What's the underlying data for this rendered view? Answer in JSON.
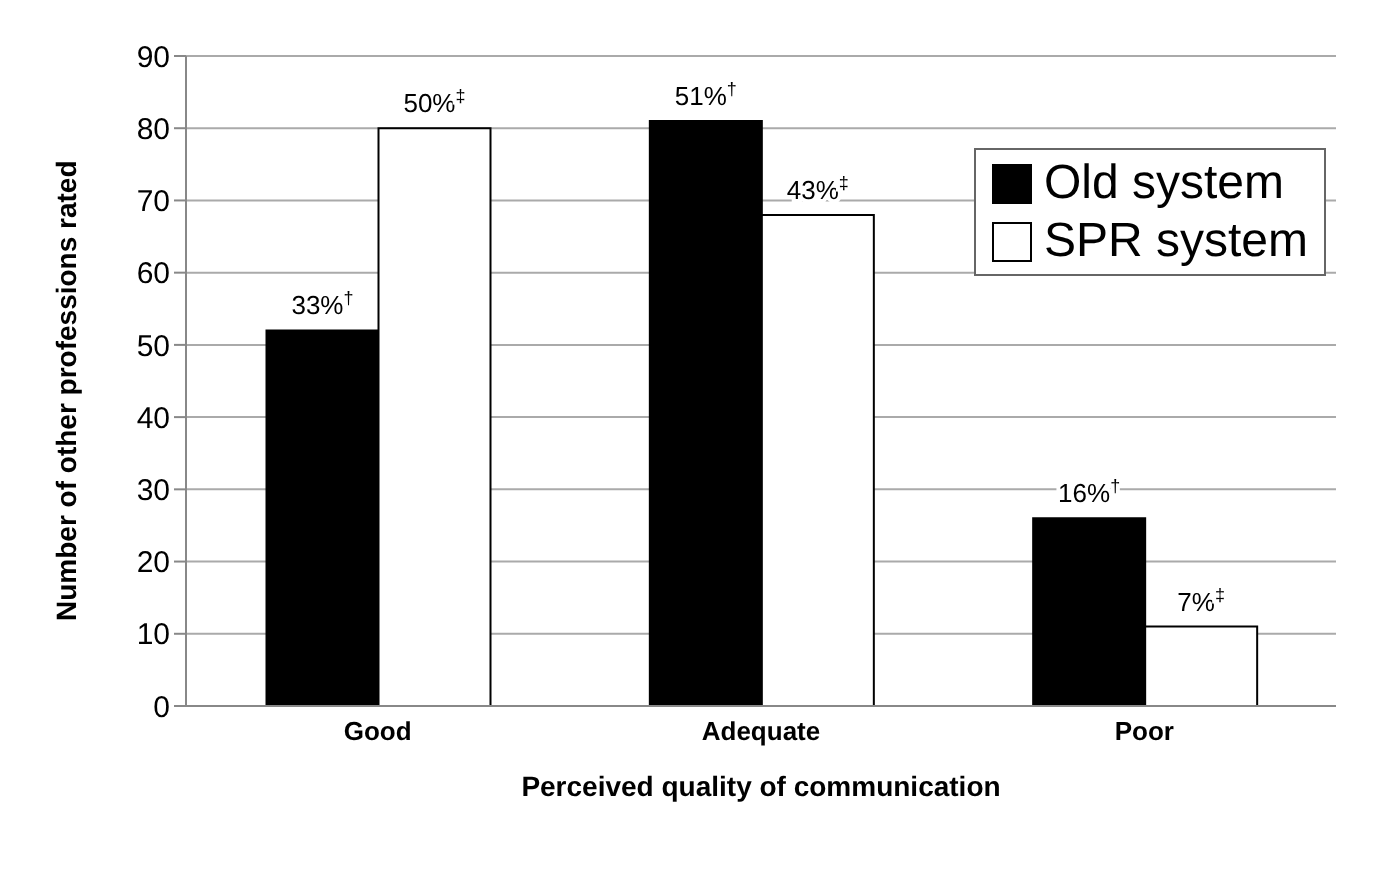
{
  "chart_data": {
    "type": "bar",
    "xlabel": "Perceived quality of communication",
    "ylabel": "Number of other professions rated",
    "categories": [
      "Good",
      "Adequate",
      "Poor"
    ],
    "series": [
      {
        "name": "Old system",
        "color": "#000000",
        "values": [
          52,
          81,
          26
        ]
      },
      {
        "name": "SPR system",
        "color": "#ffffff",
        "values": [
          80,
          68,
          11
        ]
      }
    ],
    "annotations": [
      {
        "text": "33%$^{†}$",
        "x": "Good",
        "y": 52
      },
      {
        "text": "51%$^{†}$",
        "x": "Adequate",
        "y": 81
      },
      {
        "text": "16%$^{†}$",
        "x": "Poor",
        "y": 26
      },
      {
        "text": "50%$^{‡}$",
        "x": "Good",
        "y": 80
      },
      {
        "text": "43%$^{‡}$",
        "x": "Adequate",
        "y": 68
      },
      {
        "text": "7%$^{‡}$",
        "x": "Poor",
        "y": 11
      }
    ],
    "ylim": [
      0,
      90
    ],
    "yticks": [
      0,
      10,
      20,
      30,
      40,
      50,
      60,
      70,
      80,
      90
    ],
    "grid": "y",
    "legend": "top right"
  }
}
